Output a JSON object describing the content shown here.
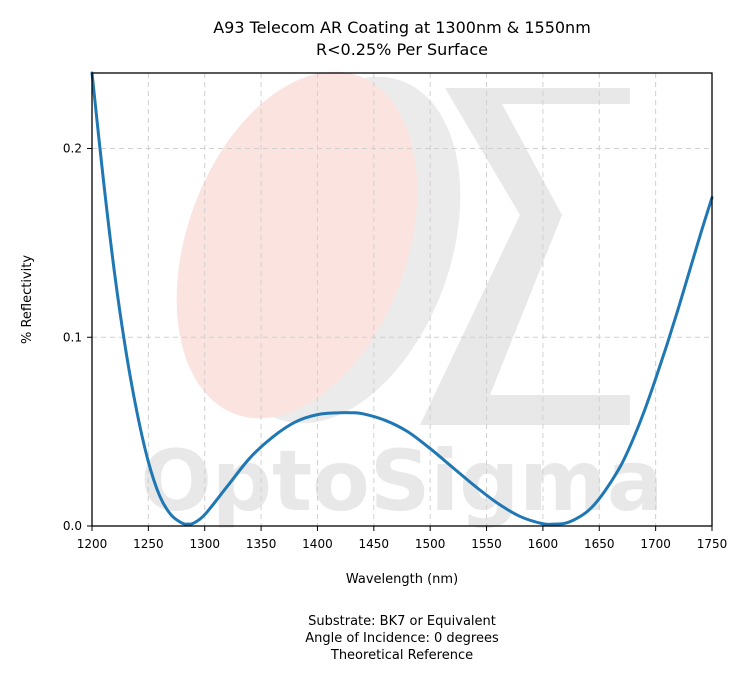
{
  "chart_data": {
    "type": "line",
    "title": "A93 Telecom AR Coating at 1300nm & 1550nm",
    "subtitle": "R<0.25% Per Surface",
    "xlabel": "Wavelength (nm)",
    "ylabel": "% Reflectivity",
    "xlim": [
      1200,
      1750
    ],
    "ylim": [
      0,
      0.24
    ],
    "x_ticks": [
      1200,
      1250,
      1300,
      1350,
      1400,
      1450,
      1500,
      1550,
      1600,
      1650,
      1700,
      1750
    ],
    "y_ticks": [
      0.0,
      0.1,
      0.2
    ],
    "y_tick_labels": [
      "0.0",
      "0.1",
      "0.2"
    ],
    "grid": true,
    "series": [
      {
        "color": "#1f77b4",
        "x": [
          1200,
          1210,
          1220,
          1230,
          1240,
          1250,
          1260,
          1270,
          1280,
          1285,
          1290,
          1300,
          1320,
          1340,
          1360,
          1380,
          1400,
          1420,
          1430,
          1440,
          1460,
          1480,
          1500,
          1520,
          1540,
          1560,
          1580,
          1600,
          1610,
          1620,
          1630,
          1640,
          1650,
          1660,
          1670,
          1680,
          1690,
          1700,
          1710,
          1720,
          1730,
          1740,
          1750
        ],
        "y": [
          0.24,
          0.184,
          0.134,
          0.093,
          0.06,
          0.034,
          0.016,
          0.006,
          0.0015,
          0.001,
          0.0015,
          0.006,
          0.021,
          0.036,
          0.047,
          0.055,
          0.059,
          0.06,
          0.06,
          0.0595,
          0.056,
          0.05,
          0.041,
          0.031,
          0.021,
          0.012,
          0.005,
          0.0012,
          0.001,
          0.0015,
          0.004,
          0.008,
          0.0145,
          0.023,
          0.033,
          0.046,
          0.061,
          0.078,
          0.096,
          0.115,
          0.135,
          0.155,
          0.174
        ]
      }
    ]
  },
  "watermark": {
    "brand": "OptoSigma",
    "accent_color": "#fbe3e0",
    "mark_color": "#e8e8e8"
  },
  "footer": {
    "line1": "Substrate: BK7 or Equivalent",
    "line2": "Angle of Incidence: 0 degrees",
    "line3": "Theoretical Reference"
  }
}
